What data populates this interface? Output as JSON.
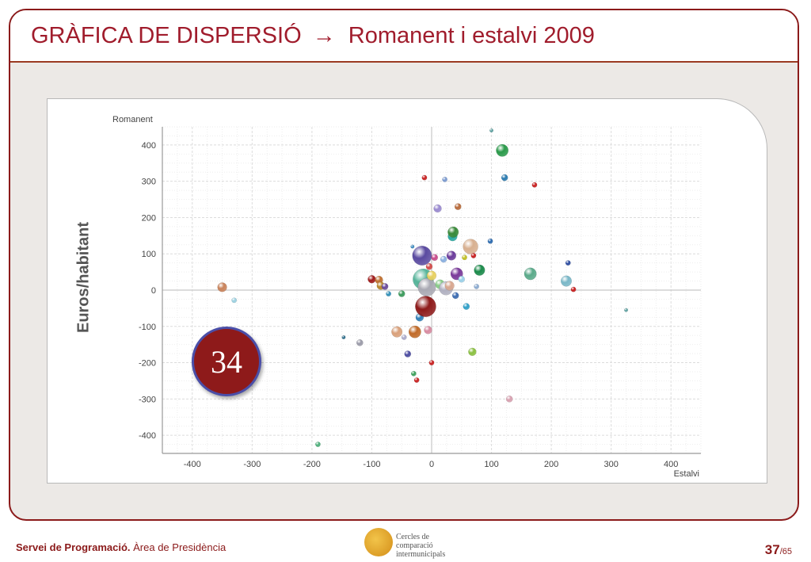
{
  "slide": {
    "title_main": "GRÀFICA DE DISPERSIÓ",
    "title_arrow": "→",
    "title_sub": "Romanent i estalvi 2009",
    "y_side_label": "Euros/habitant",
    "badge_number": "34"
  },
  "footer": {
    "org_bold": "Servei de Programació.",
    "org_rest": " Àrea de Presidència",
    "logo_text_line1": "Cercles de comparació",
    "logo_text_line2": "intermunicipals",
    "page_current": "37",
    "page_total": "/65"
  },
  "chart_data": {
    "type": "scatter",
    "xlabel": "Estalvi",
    "ylabel": "Romanent",
    "xlim": [
      -450,
      450
    ],
    "ylim": [
      -450,
      450
    ],
    "xticks": [
      -400,
      -300,
      -200,
      -100,
      0,
      100,
      200,
      300,
      400
    ],
    "yticks": [
      400,
      300,
      200,
      100,
      0,
      -100,
      -200,
      -300,
      -400
    ],
    "grid": true,
    "points": [
      {
        "x": -350,
        "y": 8,
        "size": 6,
        "color": "#c9825a"
      },
      {
        "x": -330,
        "y": -28,
        "size": 3,
        "color": "#9ad0e0"
      },
      {
        "x": -190,
        "y": -425,
        "size": 3,
        "color": "#4caf7a"
      },
      {
        "x": -147,
        "y": -130,
        "size": 2,
        "color": "#2a6b8a"
      },
      {
        "x": -120,
        "y": -145,
        "size": 4,
        "color": "#9a9aa8"
      },
      {
        "x": -100,
        "y": 30,
        "size": 5,
        "color": "#a01c1c"
      },
      {
        "x": -88,
        "y": 28,
        "size": 5,
        "color": "#c07030"
      },
      {
        "x": -85,
        "y": 12,
        "size": 5,
        "color": "#b8862c"
      },
      {
        "x": -78,
        "y": 10,
        "size": 4,
        "color": "#6a4a9a"
      },
      {
        "x": -72,
        "y": -10,
        "size": 3,
        "color": "#2f8fb8"
      },
      {
        "x": -58,
        "y": -115,
        "size": 7,
        "color": "#d9a07a"
      },
      {
        "x": -50,
        "y": -10,
        "size": 4,
        "color": "#3a9a5a"
      },
      {
        "x": -46,
        "y": -130,
        "size": 3,
        "color": "#aaaacc"
      },
      {
        "x": -40,
        "y": -176,
        "size": 4,
        "color": "#4a4aa0"
      },
      {
        "x": -32,
        "y": 120,
        "size": 2,
        "color": "#3a8ac0"
      },
      {
        "x": -30,
        "y": -230,
        "size": 3,
        "color": "#3aa05a"
      },
      {
        "x": -28,
        "y": -115,
        "size": 8,
        "color": "#c06a28"
      },
      {
        "x": -25,
        "y": -248,
        "size": 3,
        "color": "#c81e1e"
      },
      {
        "x": -20,
        "y": -75,
        "size": 5,
        "color": "#2f7fb8"
      },
      {
        "x": -18,
        "y": 22,
        "size": 5,
        "color": "#e0c040"
      },
      {
        "x": -16,
        "y": 95,
        "size": 13,
        "color": "#5a4aa0"
      },
      {
        "x": -14,
        "y": 30,
        "size": 14,
        "color": "#56b49a"
      },
      {
        "x": -12,
        "y": 310,
        "size": 3,
        "color": "#c81e1e"
      },
      {
        "x": -10,
        "y": -45,
        "size": 14,
        "color": "#8e1a1a"
      },
      {
        "x": -8,
        "y": 8,
        "size": 12,
        "color": "#a9a9b3"
      },
      {
        "x": -6,
        "y": -110,
        "size": 5,
        "color": "#d88aa0"
      },
      {
        "x": -4,
        "y": 65,
        "size": 4,
        "color": "#d34a4a"
      },
      {
        "x": 0,
        "y": 40,
        "size": 6,
        "color": "#e8d060"
      },
      {
        "x": 0,
        "y": -200,
        "size": 3,
        "color": "#c81e1e"
      },
      {
        "x": 5,
        "y": 90,
        "size": 4,
        "color": "#c84a8a"
      },
      {
        "x": 10,
        "y": 225,
        "size": 5,
        "color": "#9a8ad0"
      },
      {
        "x": 14,
        "y": 16,
        "size": 6,
        "color": "#88cc88"
      },
      {
        "x": 20,
        "y": 85,
        "size": 4,
        "color": "#8ab0e0"
      },
      {
        "x": 22,
        "y": 305,
        "size": 3,
        "color": "#7a9ad0"
      },
      {
        "x": 24,
        "y": 5,
        "size": 9,
        "color": "#b0b0c0"
      },
      {
        "x": 30,
        "y": 12,
        "size": 6,
        "color": "#d9a890"
      },
      {
        "x": 33,
        "y": 95,
        "size": 6,
        "color": "#6a3a9a"
      },
      {
        "x": 35,
        "y": 148,
        "size": 6,
        "color": "#2aa8a0"
      },
      {
        "x": 36,
        "y": 160,
        "size": 7,
        "color": "#3a8a3a"
      },
      {
        "x": 40,
        "y": -15,
        "size": 4,
        "color": "#3a6ab0"
      },
      {
        "x": 42,
        "y": 45,
        "size": 8,
        "color": "#7a3a9a"
      },
      {
        "x": 44,
        "y": 230,
        "size": 4,
        "color": "#b86a3a"
      },
      {
        "x": 50,
        "y": 30,
        "size": 4,
        "color": "#9ad0e8"
      },
      {
        "x": 55,
        "y": 90,
        "size": 3,
        "color": "#c0c020"
      },
      {
        "x": 58,
        "y": -45,
        "size": 4,
        "color": "#2f9fc8"
      },
      {
        "x": 65,
        "y": 120,
        "size": 10,
        "color": "#d8b090"
      },
      {
        "x": 68,
        "y": -170,
        "size": 5,
        "color": "#8ac040"
      },
      {
        "x": 70,
        "y": 95,
        "size": 3,
        "color": "#c81e1e"
      },
      {
        "x": 75,
        "y": 10,
        "size": 3,
        "color": "#8aaad0"
      },
      {
        "x": 80,
        "y": 55,
        "size": 7,
        "color": "#1a8a4a"
      },
      {
        "x": 98,
        "y": 135,
        "size": 3,
        "color": "#2a6ab0"
      },
      {
        "x": 100,
        "y": 440,
        "size": 2,
        "color": "#5aa0a0"
      },
      {
        "x": 118,
        "y": 385,
        "size": 8,
        "color": "#2a9a4a"
      },
      {
        "x": 122,
        "y": 310,
        "size": 4,
        "color": "#2a7ab0"
      },
      {
        "x": 130,
        "y": -300,
        "size": 4,
        "color": "#d8a0b0"
      },
      {
        "x": 165,
        "y": 45,
        "size": 8,
        "color": "#5aaa8a"
      },
      {
        "x": 172,
        "y": 290,
        "size": 3,
        "color": "#c81e1e"
      },
      {
        "x": 225,
        "y": 25,
        "size": 7,
        "color": "#7ab8c8"
      },
      {
        "x": 228,
        "y": 75,
        "size": 3,
        "color": "#2a4aa0"
      },
      {
        "x": 237,
        "y": 2,
        "size": 3,
        "color": "#c81e1e"
      },
      {
        "x": 325,
        "y": -55,
        "size": 2,
        "color": "#5aa0a0"
      }
    ]
  }
}
